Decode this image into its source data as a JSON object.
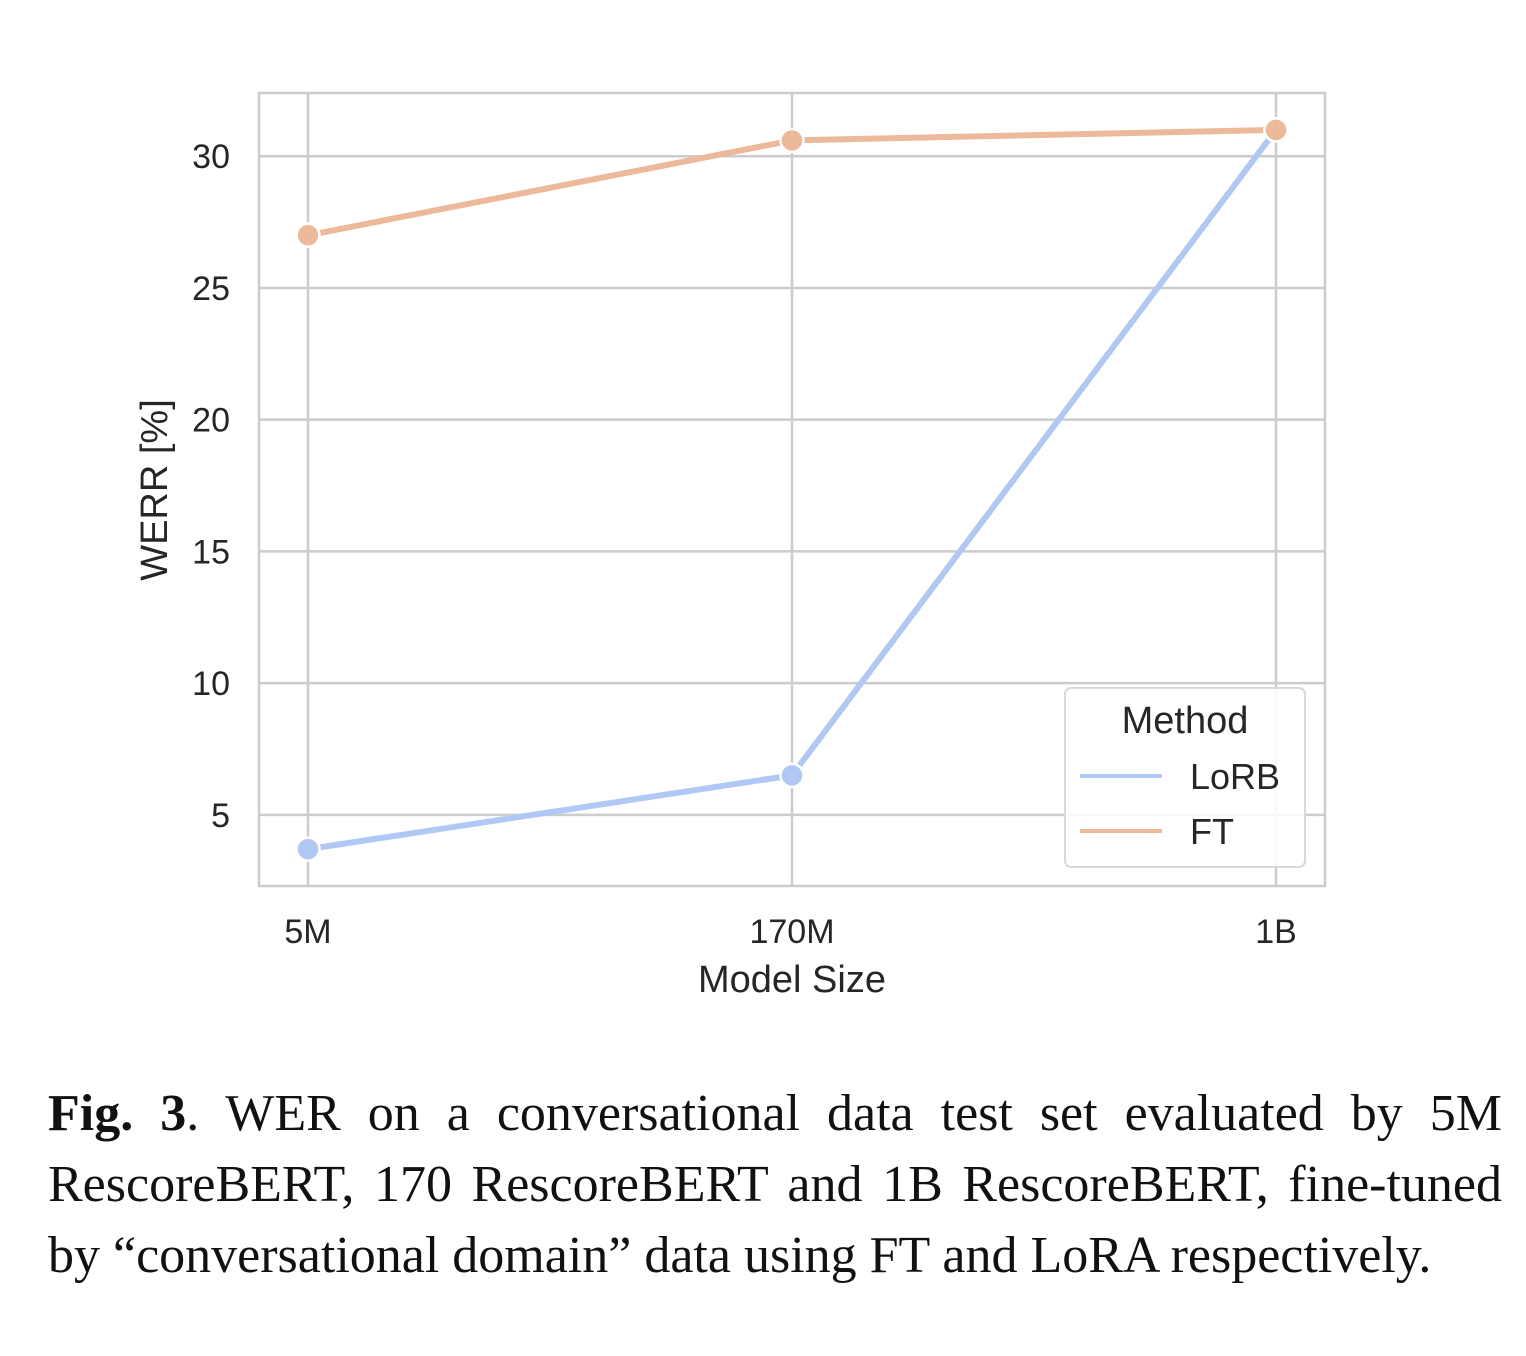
{
  "chart_data": {
    "type": "line",
    "categories": [
      "5M",
      "170M",
      "1B"
    ],
    "xlabel": "Model Size",
    "ylabel": "WERR [%]",
    "ylim": [
      2.3,
      32.4
    ],
    "yticks": [
      5,
      10,
      15,
      20,
      25,
      30
    ],
    "grid": true,
    "legend": {
      "title": "Method",
      "placement": "lower-right"
    },
    "series": [
      {
        "name": "LoRB",
        "color": "#b1c8f5",
        "values": [
          3.7,
          6.5,
          31.0
        ]
      },
      {
        "name": "FT",
        "color": "#edb99b",
        "values": [
          27.0,
          30.6,
          31.0
        ]
      }
    ]
  },
  "caption": {
    "label": "Fig. 3",
    "text": ".  WER on a conversational data test set evaluated by 5M RescoreBERT, 170 RescoreBERT and 1B RescoreBERT, fine-tuned by “conversational domain” data using FT and LoRA respectively."
  }
}
